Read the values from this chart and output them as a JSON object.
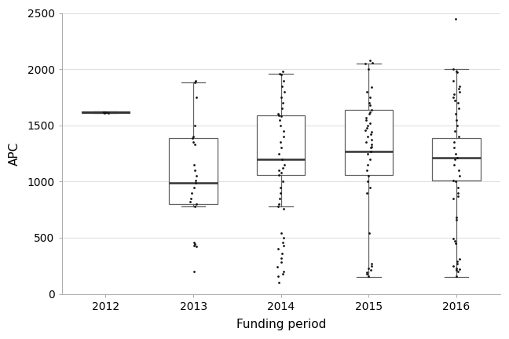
{
  "title": "",
  "xlabel": "Funding period",
  "ylabel": "APC",
  "xlim": [
    0.5,
    5.5
  ],
  "ylim": [
    0,
    2500
  ],
  "yticks": [
    0,
    500,
    1000,
    1500,
    2000,
    2500
  ],
  "xtick_labels": [
    "2012",
    "2013",
    "2014",
    "2015",
    "2016"
  ],
  "background_color": "#ffffff",
  "plot_bg_color": "#ffffff",
  "box_color": "white",
  "box_edge_color": "#606060",
  "median_color": "#333333",
  "whisker_color": "#606060",
  "flier_color": "#111111",
  "grid_color": "#e0e0e0",
  "box_data": {
    "2012": {
      "q1": 1610,
      "median": 1617,
      "q3": 1622,
      "whislo": 1610,
      "whishi": 1622
    },
    "2013": {
      "q1": 800,
      "median": 990,
      "q3": 1390,
      "whislo": 780,
      "whishi": 1880
    },
    "2014": {
      "q1": 1060,
      "median": 1200,
      "q3": 1590,
      "whislo": 780,
      "whishi": 1960
    },
    "2015": {
      "q1": 1060,
      "median": 1270,
      "q3": 1640,
      "whislo": 150,
      "whishi": 2050
    },
    "2016": {
      "q1": 1010,
      "median": 1210,
      "q3": 1390,
      "whislo": 150,
      "whishi": 2000
    }
  },
  "scatter_data": {
    "2012": [
      1610,
      1613,
      1615,
      1617,
      1619
    ],
    "2013": [
      200,
      420,
      430,
      445,
      460,
      780,
      800,
      820,
      850,
      900,
      950,
      990,
      1010,
      1050,
      1100,
      1150,
      1330,
      1350,
      1390,
      1400,
      1500,
      1750,
      1880,
      1900
    ],
    "2014": [
      100,
      160,
      180,
      200,
      240,
      280,
      320,
      360,
      400,
      430,
      460,
      500,
      540,
      760,
      780,
      800,
      850,
      900,
      950,
      1000,
      1060,
      1080,
      1100,
      1120,
      1150,
      1200,
      1250,
      1300,
      1350,
      1400,
      1450,
      1500,
      1550,
      1580,
      1590,
      1600,
      1650,
      1700,
      1750,
      1800,
      1850,
      1900,
      1950,
      1960,
      1980
    ],
    "2015": [
      160,
      175,
      190,
      210,
      230,
      250,
      270,
      540,
      900,
      950,
      1000,
      1050,
      1100,
      1150,
      1200,
      1250,
      1270,
      1300,
      1310,
      1330,
      1350,
      1370,
      1400,
      1420,
      1440,
      1460,
      1480,
      1500,
      1520,
      1550,
      1570,
      1600,
      1620,
      1640,
      1680,
      1700,
      1750,
      1800,
      1840,
      2000,
      2050,
      2060,
      2080
    ],
    "2016": [
      155,
      200,
      210,
      220,
      230,
      250,
      270,
      290,
      310,
      450,
      470,
      490,
      660,
      680,
      850,
      870,
      900,
      950,
      1000,
      1010,
      1050,
      1100,
      1150,
      1200,
      1210,
      1250,
      1300,
      1350,
      1400,
      1450,
      1500,
      1550,
      1600,
      1650,
      1700,
      1720,
      1750,
      1780,
      1800,
      1830,
      1850,
      1900,
      1970,
      1980,
      2000,
      2450
    ]
  },
  "box_width": 0.55,
  "linewidth": 0.9,
  "dot_size": 4,
  "dot_jitter": 0.04
}
